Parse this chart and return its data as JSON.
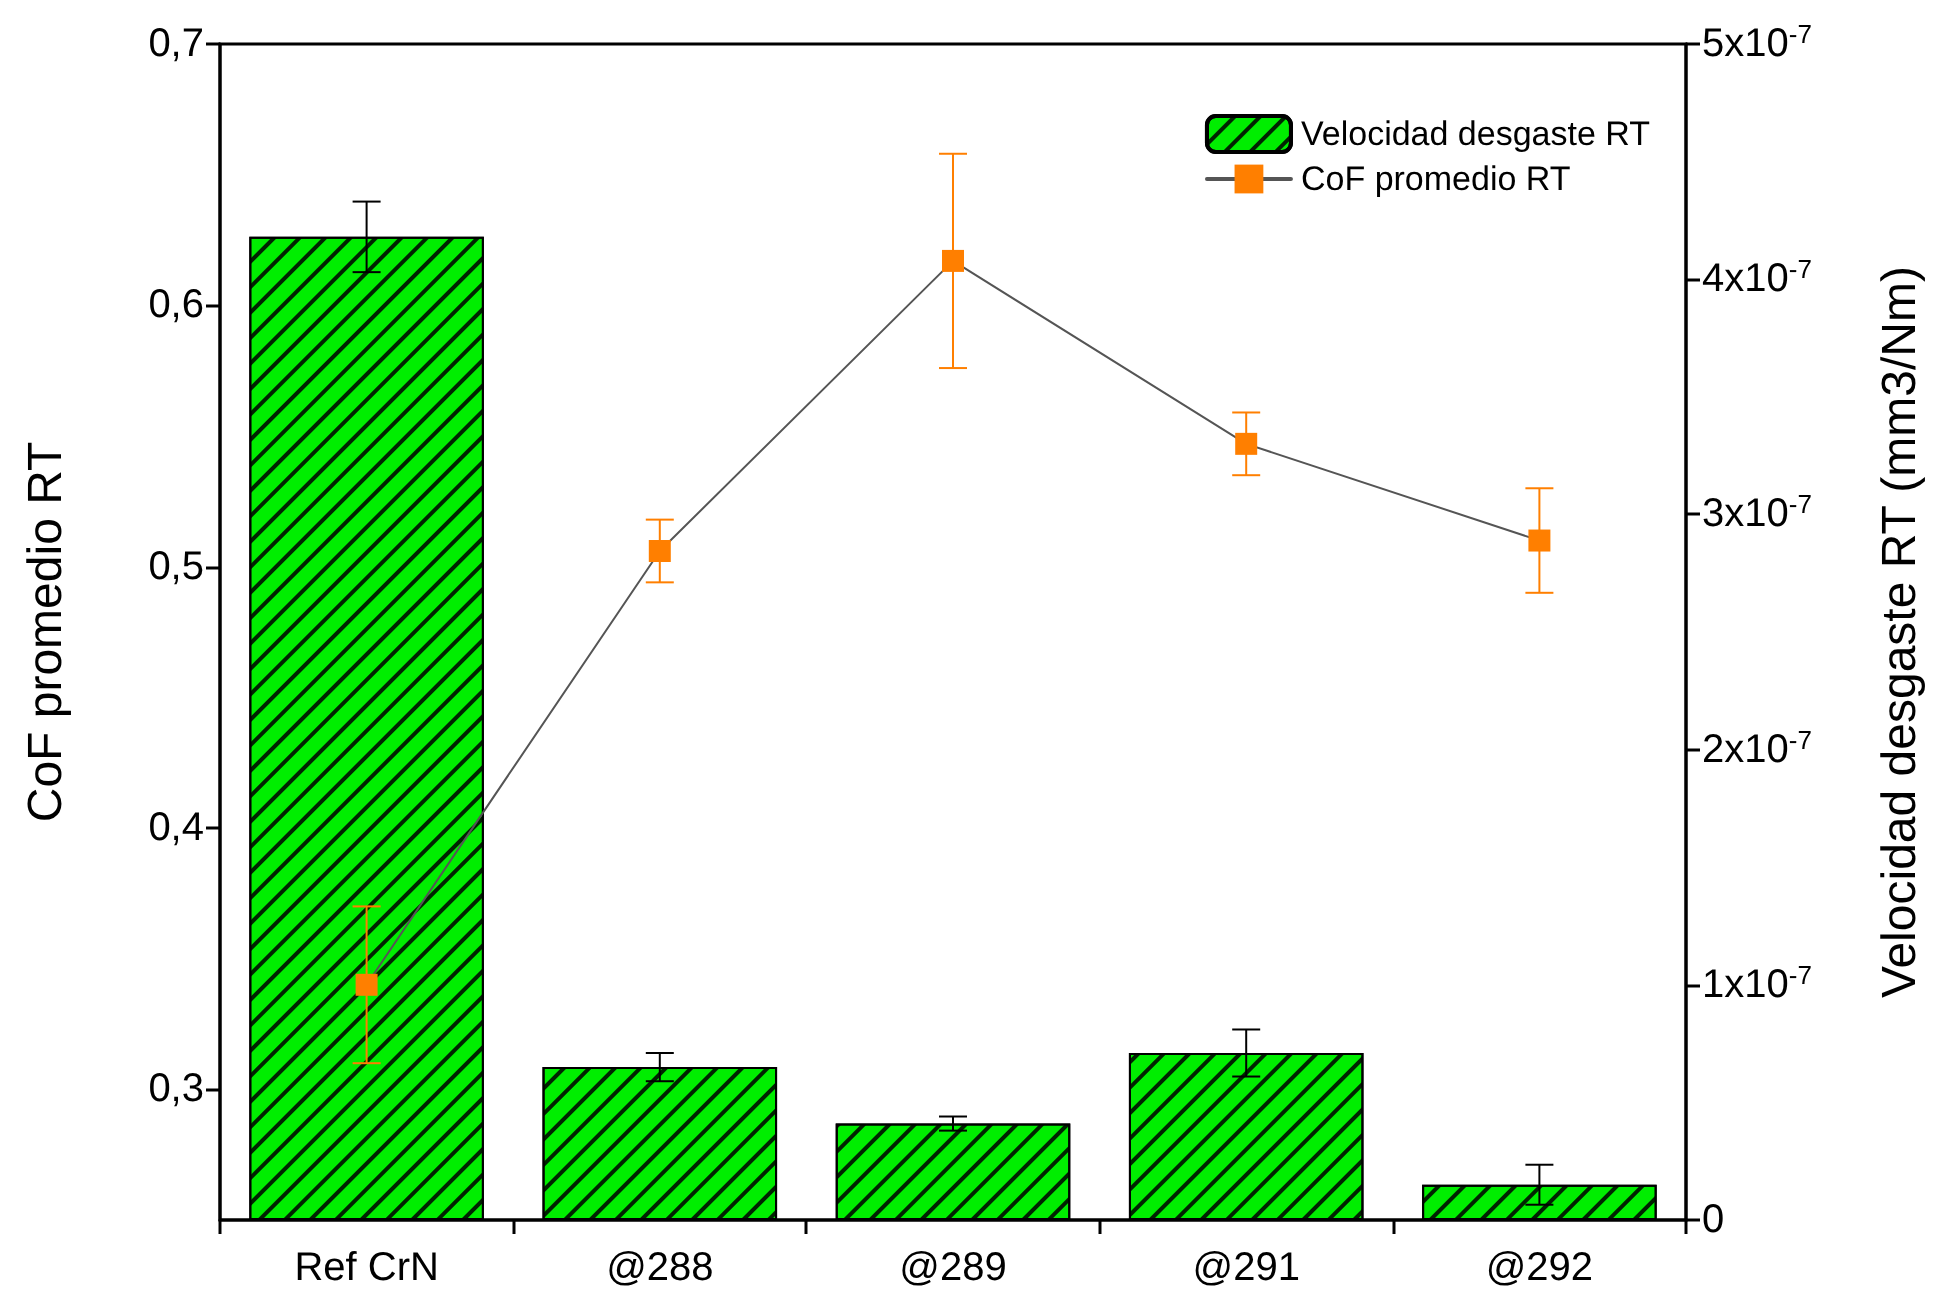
{
  "chart_data": {
    "type": "bar",
    "ylabel": "CoF promedio RT",
    "y2label": "Velocidad desgaste RT (mm3/Nm)",
    "categories": [
      "Ref CrN",
      "@288",
      "@289",
      "@291",
      "@292"
    ],
    "series": [
      {
        "name": "Velocidad desgaste RT",
        "axis": "y2",
        "color": "#00ee00",
        "values": [
          4.18e-07,
          6.5e-08,
          4.1e-08,
          7.1e-08,
          1.5e-08
        ],
        "errors": [
          1.5e-08,
          6e-09,
          3e-09,
          1e-08,
          8.5e-09
        ]
      },
      {
        "name": "CoF promedio RT",
        "type": "line",
        "axis": "y",
        "color": "#ff7f00",
        "marker": "square",
        "values": [
          0.34,
          0.506,
          0.617,
          0.547,
          0.51
        ],
        "errors": [
          0.03,
          0.012,
          0.041,
          0.012,
          0.02
        ]
      }
    ],
    "ylim": [
      0.25,
      0.7
    ],
    "yticks": [
      {
        "value": 0.3,
        "label": "0,3"
      },
      {
        "value": 0.4,
        "label": "0,4"
      },
      {
        "value": 0.5,
        "label": "0,5"
      },
      {
        "value": 0.6,
        "label": "0,6"
      },
      {
        "value": 0.7,
        "label": "0,7"
      }
    ],
    "y2lim": [
      0,
      5e-07
    ],
    "y2ticks": [
      0,
      {
        "value": 1e-07,
        "label": "1x10$^{-7}$"
      },
      {
        "value": 2e-07,
        "label": "2x10$^{-7}$"
      },
      {
        "value": 3e-07,
        "label": "3x10$^{-7}$"
      },
      {
        "value": 4e-07,
        "label": "4x10$^{-7}$"
      },
      {
        "value": 5e-07,
        "label": "5x10$^{-7}$"
      }
    ],
    "grid": false,
    "legend": "top right"
  }
}
